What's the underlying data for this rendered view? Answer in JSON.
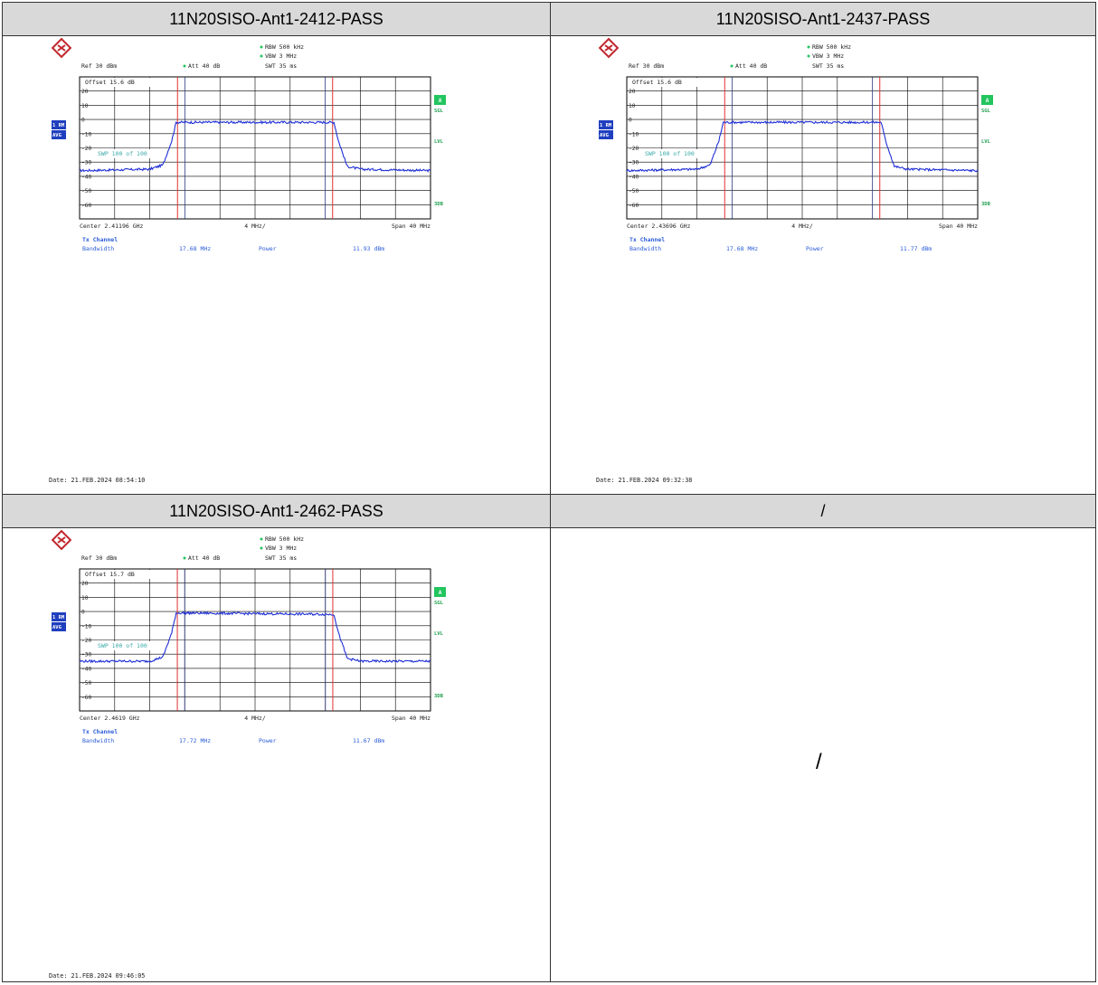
{
  "cells": [
    {
      "title": "11N20SISO-Ant1-2412-PASS",
      "rbw": "RBW 500 kHz",
      "vbw": "VBW 3 MHz",
      "swt": "SWT 35 ms",
      "ref": "Ref  30 dBm",
      "att": "Att  40 dB",
      "offset": "Offset  15.6 dB",
      "swp": "SWP   100 of  100",
      "center": "Center 2.41196 GHz",
      "div": "4 MHz/",
      "span": "Span 40 MHz",
      "tx_channel": "Tx Channel",
      "bandwidth_label": "Bandwidth",
      "bandwidth_value": "17.68 MHz",
      "power_label": "Power",
      "power_value": "11.93 dBm",
      "date": "Date: 21.FEB.2024  08:54:10",
      "badge_rm": "1 RM",
      "badge_avg": "AVG",
      "badge_a": "A",
      "sgl": "SGL",
      "lvl": "LVL",
      "db3": "3DB"
    },
    {
      "title": "11N20SISO-Ant1-2437-PASS",
      "rbw": "RBW 500 kHz",
      "vbw": "VBW 3 MHz",
      "swt": "SWT 35 ms",
      "ref": "Ref  30 dBm",
      "att": "Att  40 dB",
      "offset": "Offset  15.6 dB",
      "swp": "SWP   100 of  100",
      "center": "Center 2.43696 GHz",
      "div": "4 MHz/",
      "span": "Span 40 MHz",
      "tx_channel": "Tx Channel",
      "bandwidth_label": "Bandwidth",
      "bandwidth_value": "17.68 MHz",
      "power_label": "Power",
      "power_value": "11.77 dBm",
      "date": "Date: 21.FEB.2024  09:32:38",
      "badge_rm": "1 RM",
      "badge_avg": "AVG",
      "badge_a": "A",
      "sgl": "SGL",
      "lvl": "LVL",
      "db3": "3DB"
    },
    {
      "title": "11N20SISO-Ant1-2462-PASS",
      "rbw": "RBW 500 kHz",
      "vbw": "VBW 3 MHz",
      "swt": "SWT 35 ms",
      "ref": "Ref  30 dBm",
      "att": "Att  40 dB",
      "offset": "Offset  15.7 dB",
      "swp": "SWP   100 of  100",
      "center": "Center 2.4619 GHz",
      "div": "4 MHz/",
      "span": "Span 40 MHz",
      "tx_channel": "Tx Channel",
      "bandwidth_label": "Bandwidth",
      "bandwidth_value": "17.72 MHz",
      "power_label": "Power",
      "power_value": "11.67 dBm",
      "date": "Date: 21.FEB.2024  09:46:05",
      "badge_rm": "1 RM",
      "badge_avg": "AVG",
      "badge_a": "A",
      "sgl": "SGL",
      "lvl": "LVL",
      "db3": "3DB"
    }
  ],
  "empty_cell": {
    "title": "/",
    "body": "/"
  },
  "chart_data": [
    {
      "type": "line",
      "title": "11N20SISO-Ant1-2412-PASS",
      "xlabel": "Center 2.41196 GHz",
      "x_unit": "MHz offset from center",
      "xlim": [
        -20,
        20
      ],
      "ylim": [
        -70,
        30
      ],
      "ytick_labels": [
        "20",
        "10",
        "0",
        "-10",
        "-20",
        "-30",
        "-40",
        "-50",
        "-60"
      ],
      "markers_mhz": [
        -8.84,
        8.84
      ],
      "series": [
        {
          "x": [
            -20,
            -12,
            -10.5,
            -9.5,
            -9,
            9,
            9.5,
            10.5,
            12,
            20
          ],
          "values": [
            -36,
            -35,
            -32,
            -15,
            -2,
            -2,
            -15,
            -33,
            -35,
            -36
          ]
        }
      ],
      "grid": true
    },
    {
      "type": "line",
      "title": "11N20SISO-Ant1-2437-PASS",
      "xlabel": "Center 2.43696 GHz",
      "x_unit": "MHz offset from center",
      "xlim": [
        -20,
        20
      ],
      "ylim": [
        -70,
        30
      ],
      "ytick_labels": [
        "20",
        "10",
        "0",
        "-10",
        "-20",
        "-30",
        "-40",
        "-50",
        "-60"
      ],
      "markers_mhz": [
        -8.84,
        8.84
      ],
      "series": [
        {
          "x": [
            -20,
            -12,
            -10.5,
            -9.5,
            -9,
            9,
            9.5,
            10.5,
            12,
            20
          ],
          "values": [
            -36,
            -35,
            -32,
            -15,
            -2,
            -2,
            -15,
            -33,
            -35,
            -36
          ]
        }
      ],
      "grid": true
    },
    {
      "type": "line",
      "title": "11N20SISO-Ant1-2462-PASS",
      "xlabel": "Center 2.4619 GHz",
      "x_unit": "MHz offset from center",
      "xlim": [
        -20,
        20
      ],
      "ylim": [
        -70,
        30
      ],
      "ytick_labels": [
        "20",
        "10",
        "0",
        "-10",
        "-20",
        "-30",
        "-40",
        "-50",
        "-60"
      ],
      "markers_mhz": [
        -8.86,
        8.86
      ],
      "series": [
        {
          "x": [
            -20,
            -12,
            -10.5,
            -9.5,
            -9,
            9,
            9.5,
            10.5,
            12,
            20
          ],
          "values": [
            -35,
            -35,
            -32,
            -15,
            -1,
            -2,
            -15,
            -33,
            -35,
            -35
          ]
        }
      ],
      "grid": true
    }
  ],
  "colors": {
    "trace": "#1f2fd6",
    "marker": "#e03030",
    "badge_blue": "#1f3fbf",
    "badge_green": "#22c55e",
    "label_blue": "#2a5bd8",
    "grid": "#000000"
  }
}
